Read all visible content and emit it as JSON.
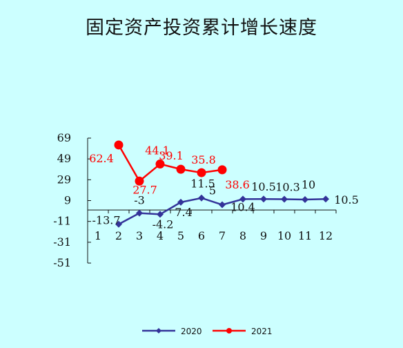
{
  "chart_data": {
    "type": "line",
    "title": "固定资产投资累计增长速度",
    "xlabel": "",
    "ylabel": "",
    "ylim": [
      -51,
      69
    ],
    "yticks": [
      "69",
      "49",
      "29",
      "9",
      "-11",
      "-31",
      "-51"
    ],
    "ytick_values": [
      69,
      49,
      29,
      9,
      -11,
      -31,
      -51
    ],
    "categories": [
      "1",
      "2",
      "3",
      "4",
      "5",
      "6",
      "7",
      "8",
      "9",
      "10",
      "11",
      "12"
    ],
    "legend_position": "bottom",
    "series": [
      {
        "name": "2020",
        "color": "#333399",
        "marker": "diamond",
        "values": [
          null,
          -13.7,
          -3,
          -4.2,
          7.4,
          11.5,
          5,
          10.4,
          10.5,
          10.3,
          10,
          10.5
        ],
        "labels": [
          "",
          "-13.7",
          "-3",
          "-4.2",
          "7.4",
          "11.5",
          "5",
          "10.4",
          "10.5",
          "10.3",
          "10",
          "10.5"
        ]
      },
      {
        "name": "2021",
        "color": "#ff0000",
        "marker": "circle",
        "values": [
          null,
          62.4,
          27.7,
          44.1,
          39.1,
          35.8,
          38.6,
          null,
          null,
          null,
          null,
          null
        ],
        "labels": [
          "",
          "62.4",
          "27.7",
          "44.1",
          "39.1",
          "35.8",
          "38.6",
          "",
          "",
          "",
          "",
          ""
        ]
      }
    ]
  }
}
